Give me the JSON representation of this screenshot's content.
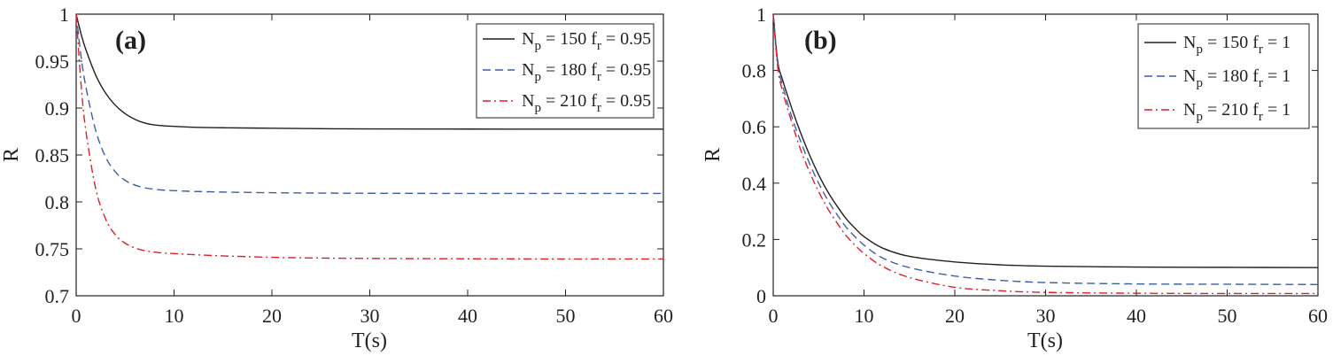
{
  "chart_data": [
    {
      "type": "line",
      "panel_label": "(a)",
      "xlabel": "T(s)",
      "ylabel": "R",
      "xlim": [
        0,
        60
      ],
      "ylim": [
        0.7,
        1.0
      ],
      "xticks": [
        0,
        10,
        20,
        30,
        40,
        50,
        60
      ],
      "yticks": [
        0.7,
        0.75,
        0.8,
        0.85,
        0.9,
        0.95,
        1
      ],
      "ytick_labels": [
        "0.7",
        "0.75",
        "0.8",
        "0.85",
        "0.9",
        "0.95",
        "1"
      ],
      "legend_position": "top-right",
      "series": [
        {
          "name": "N_p = 150 f_r = 0.95",
          "np": "150",
          "fr": "0.95",
          "color": "#231f20",
          "dash": "solid",
          "t": [
            0,
            0.5,
            1,
            2,
            3,
            4,
            5,
            6,
            7,
            8,
            9,
            10,
            12,
            15,
            20,
            25,
            30,
            40,
            50,
            60
          ],
          "r": [
            1.0,
            0.979,
            0.962,
            0.935,
            0.916,
            0.903,
            0.894,
            0.888,
            0.884,
            0.882,
            0.881,
            0.8805,
            0.8795,
            0.879,
            0.8785,
            0.878,
            0.8778,
            0.8776,
            0.8775,
            0.8775
          ]
        },
        {
          "name": "N_p = 180 f_r = 0.95",
          "np": "180",
          "fr": "0.95",
          "color": "#3a5fa8",
          "dash": "dashed",
          "t": [
            0,
            0.5,
            1,
            2,
            3,
            4,
            5,
            6,
            7,
            8,
            9,
            10,
            12,
            15,
            20,
            25,
            30,
            40,
            50,
            60
          ],
          "r": [
            1.0,
            0.955,
            0.922,
            0.876,
            0.848,
            0.832,
            0.823,
            0.818,
            0.815,
            0.8135,
            0.8125,
            0.812,
            0.8112,
            0.8105,
            0.8098,
            0.8094,
            0.8092,
            0.809,
            0.809,
            0.809
          ]
        },
        {
          "name": "N_p = 210 f_r = 0.95",
          "np": "210",
          "fr": "0.95",
          "color": "#e01f26",
          "dash": "dashdot",
          "t": [
            0,
            0.5,
            1,
            2,
            3,
            4,
            5,
            6,
            7,
            8,
            9,
            10,
            12,
            15,
            20,
            25,
            30,
            40,
            50,
            60
          ],
          "r": [
            1.0,
            0.925,
            0.875,
            0.814,
            0.782,
            0.765,
            0.756,
            0.751,
            0.748,
            0.7465,
            0.7455,
            0.745,
            0.7438,
            0.7425,
            0.741,
            0.7402,
            0.7398,
            0.7394,
            0.7392,
            0.7392
          ]
        }
      ]
    },
    {
      "type": "line",
      "panel_label": "(b)",
      "xlabel": "T(s)",
      "ylabel": "R",
      "xlim": [
        0,
        60
      ],
      "ylim": [
        0,
        1.0
      ],
      "xticks": [
        0,
        10,
        20,
        30,
        40,
        50,
        60
      ],
      "yticks": [
        0,
        0.2,
        0.4,
        0.6,
        0.8,
        1
      ],
      "ytick_labels": [
        "0",
        "0.2",
        "0.4",
        "0.6",
        "0.8",
        "1"
      ],
      "legend_position": "top-right",
      "series": [
        {
          "name": "N_p = 150 f_r = 1",
          "np": "150",
          "fr": "1",
          "color": "#231f20",
          "dash": "solid",
          "t": [
            0,
            0.5,
            1,
            2,
            3,
            4,
            5,
            6,
            7,
            8,
            9,
            10,
            12,
            15,
            20,
            25,
            30,
            40,
            50,
            60
          ],
          "r": [
            1.0,
            0.83,
            0.77,
            0.67,
            0.58,
            0.5,
            0.43,
            0.37,
            0.32,
            0.275,
            0.24,
            0.21,
            0.17,
            0.14,
            0.12,
            0.11,
            0.105,
            0.102,
            0.101,
            0.1
          ]
        },
        {
          "name": "N_p = 180 f_r = 1",
          "np": "180",
          "fr": "1",
          "color": "#3a5fa8",
          "dash": "dashed",
          "t": [
            0,
            0.5,
            1,
            2,
            3,
            4,
            5,
            6,
            7,
            8,
            9,
            10,
            12,
            15,
            20,
            25,
            30,
            40,
            50,
            60
          ],
          "r": [
            1.0,
            0.82,
            0.75,
            0.64,
            0.55,
            0.47,
            0.4,
            0.34,
            0.29,
            0.245,
            0.21,
            0.18,
            0.135,
            0.1,
            0.07,
            0.055,
            0.047,
            0.042,
            0.041,
            0.04
          ]
        },
        {
          "name": "N_p = 210 f_r = 1",
          "np": "210",
          "fr": "1",
          "color": "#e01f26",
          "dash": "dashdot",
          "t": [
            0,
            0.5,
            1,
            2,
            3,
            4,
            5,
            6,
            7,
            8,
            9,
            10,
            12,
            15,
            20,
            25,
            30,
            40,
            50,
            60
          ],
          "r": [
            1.0,
            0.81,
            0.73,
            0.62,
            0.52,
            0.44,
            0.37,
            0.31,
            0.26,
            0.215,
            0.18,
            0.15,
            0.105,
            0.065,
            0.03,
            0.018,
            0.012,
            0.009,
            0.008,
            0.008
          ]
        }
      ]
    }
  ]
}
